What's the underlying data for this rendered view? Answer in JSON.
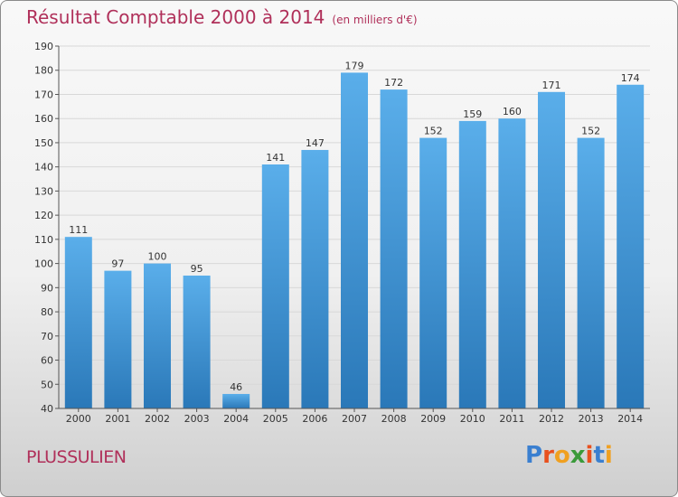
{
  "header": {
    "title": "Résultat Comptable 2000 à 2014",
    "subtitle": "(en milliers d'€)"
  },
  "footer": {
    "commune": "PLUSSULIEN",
    "logo_text": "Proxiti"
  },
  "colors": {
    "title": "#b0305a",
    "bar_top": "#5aaeea",
    "bar_bottom": "#2a78b8",
    "grid": "#d8d8d8",
    "logo_letters": [
      "#3a7fd0",
      "#e8501e",
      "#f0a020",
      "#3a9a3a",
      "#e8501e",
      "#3a7fd0",
      "#f0a020"
    ]
  },
  "chart_data": {
    "type": "bar",
    "title": "Résultat Comptable 2000 à 2014",
    "categories": [
      "2000",
      "2001",
      "2002",
      "2003",
      "2004",
      "2005",
      "2006",
      "2007",
      "2008",
      "2009",
      "2010",
      "2011",
      "2012",
      "2013",
      "2014"
    ],
    "values": [
      111,
      97,
      100,
      95,
      46,
      141,
      147,
      179,
      172,
      152,
      159,
      160,
      171,
      152,
      174
    ],
    "ylim": [
      40,
      190
    ],
    "yticks": [
      40,
      50,
      60,
      70,
      80,
      90,
      100,
      110,
      120,
      130,
      140,
      150,
      160,
      170,
      180,
      190
    ],
    "grid": true,
    "data_labels": true
  }
}
